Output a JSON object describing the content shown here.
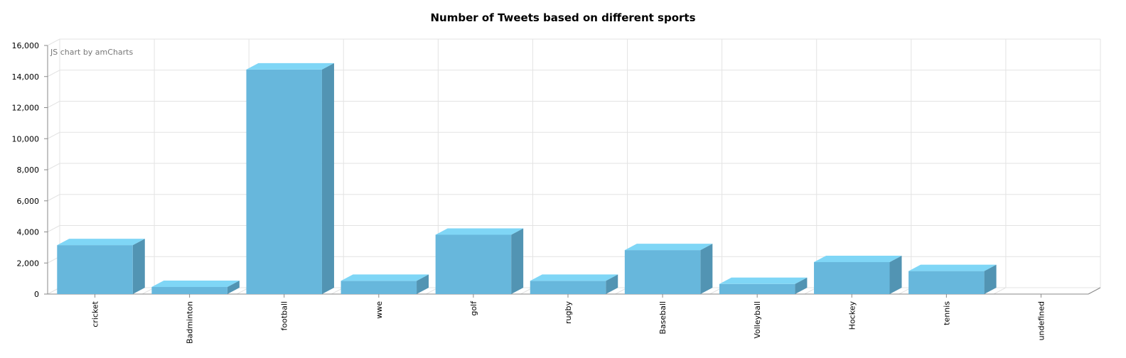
{
  "chart_data": {
    "type": "bar",
    "title": "Number of Tweets based on different sports",
    "credit": "JS chart by amCharts",
    "categories": [
      "cricket",
      "Badminton",
      "football",
      "wwe",
      "golf",
      "rugby",
      "Baseball",
      "Volleyball",
      "Hockey",
      "tennis",
      "undefined"
    ],
    "values": [
      3150,
      460,
      14450,
      850,
      3820,
      850,
      2830,
      650,
      2060,
      1480,
      0
    ],
    "yticks": [
      "0",
      "2,000",
      "4,000",
      "6,000",
      "8,000",
      "10,000",
      "12,000",
      "14,000",
      "16,000"
    ],
    "ylim": [
      0,
      16000
    ],
    "xlabel": "",
    "ylabel": "",
    "grid": true,
    "colors": {
      "front": "#67b7dc",
      "top": "#7fd6f6",
      "side": "#5294b3",
      "grid": "#e3e3e3",
      "axis": "#8a8a8a"
    }
  }
}
